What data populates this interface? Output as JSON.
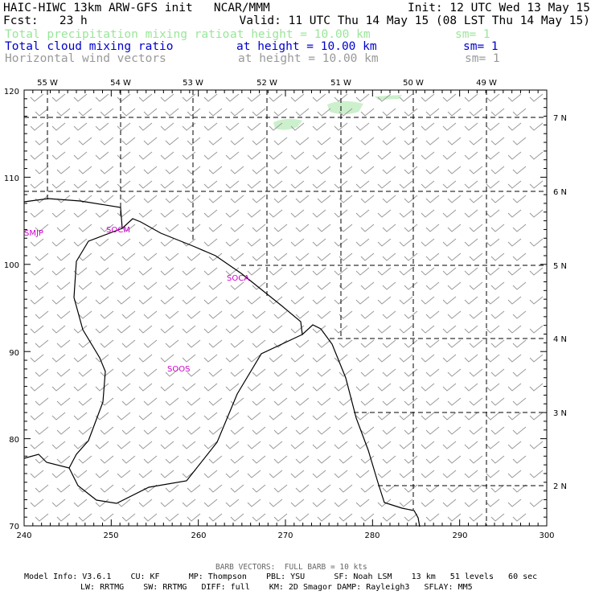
{
  "header": {
    "line1_left": "HAIC-HIWC 13km ARW-GFS init   NCAR/MMM",
    "line1_right": "Init: 12 UTC Wed 13 May 15",
    "line2_left": "Fcst:   23 h",
    "line2_right": "Valid: 11 UTC Thu 14 May 15 (08 LST Thu 14 May 15)",
    "fields": [
      {
        "name": "Total precipitation mixing ratio",
        "height": "at height = 10.00 km",
        "sm": "sm= 1",
        "color": "#99e699"
      },
      {
        "name": "Total cloud mixing ratio",
        "height": "at height = 10.00 km",
        "sm": "sm= 1",
        "color": "#0000cc"
      },
      {
        "name": "Horizontal wind vectors",
        "height": "at height = 10.00 km",
        "sm": "sm= 1",
        "color": "#999999"
      }
    ]
  },
  "map": {
    "x_ticks": [
      "240",
      "250",
      "260",
      "270",
      "280",
      "290",
      "300"
    ],
    "y_ticks": [
      "70",
      "80",
      "90",
      "100",
      "110",
      "120"
    ],
    "lon_labels": [
      "55 W",
      "54 W",
      "53 W",
      "52 W",
      "51 W",
      "50 W",
      "49 W"
    ],
    "lat_labels": [
      "7 N",
      "6 N",
      "5 N",
      "4 N",
      "3 N",
      "2 N"
    ],
    "stations": [
      "SMJP",
      "SOCM",
      "SOCA",
      "SOOS"
    ],
    "precip_color": "#ccf0cc",
    "barb_color": "#999999"
  },
  "footer": {
    "barb_note": "BARB VECTORS:  FULL BARB = 10 kts",
    "model_line1": "Model Info: V3.6.1    CU: KF      MP: Thompson    PBL: YSU      SF: Noah LSM    13 km   51 levels   60 sec",
    "model_line2": "LW: RRTMG    SW: RRTMG   DIFF: full    KM: 2D Smagor DAMP: Rayleigh3   SFLAY: MM5"
  }
}
